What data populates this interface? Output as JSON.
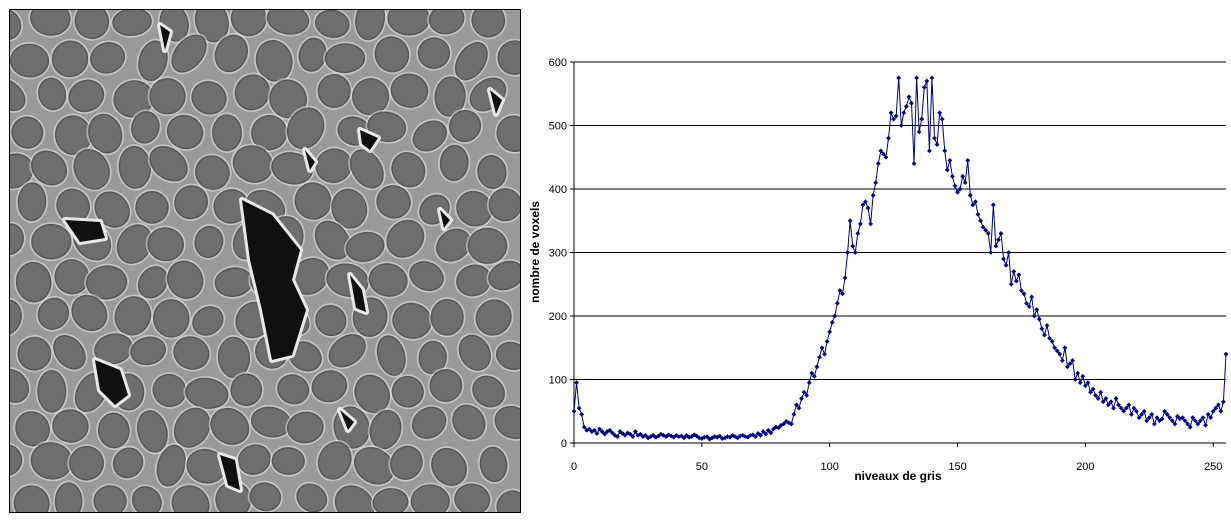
{
  "image": {
    "description_name": "micro-ct-slice",
    "colors": {
      "matrix": "#9a9a9a",
      "grain": "#6e6e6e",
      "pore": "#101010",
      "halo": "#e8e8e8"
    }
  },
  "chart_data": {
    "type": "line",
    "xlabel": "niveaux de gris",
    "ylabel": "nombre de voxels",
    "xlim": [
      0,
      255
    ],
    "ylim": [
      0,
      600
    ],
    "xticks": [
      0,
      50,
      100,
      150,
      200,
      250
    ],
    "yticks": [
      0,
      100,
      200,
      300,
      400,
      500,
      600
    ],
    "grid": "horizontal",
    "series": [
      {
        "color": "#000080",
        "marker": "diamond",
        "x": [
          0,
          1,
          2,
          3,
          4,
          5,
          6,
          7,
          8,
          9,
          10,
          11,
          12,
          13,
          14,
          15,
          16,
          17,
          18,
          19,
          20,
          21,
          22,
          23,
          24,
          25,
          26,
          27,
          28,
          29,
          30,
          31,
          32,
          33,
          34,
          35,
          36,
          37,
          38,
          39,
          40,
          41,
          42,
          43,
          44,
          45,
          46,
          47,
          48,
          49,
          50,
          51,
          52,
          53,
          54,
          55,
          56,
          57,
          58,
          59,
          60,
          61,
          62,
          63,
          64,
          65,
          66,
          67,
          68,
          69,
          70,
          71,
          72,
          73,
          74,
          75,
          76,
          77,
          78,
          79,
          80,
          81,
          82,
          83,
          84,
          85,
          86,
          87,
          88,
          89,
          90,
          91,
          92,
          93,
          94,
          95,
          96,
          97,
          98,
          99,
          100,
          101,
          102,
          103,
          104,
          105,
          106,
          107,
          108,
          109,
          110,
          111,
          112,
          113,
          114,
          115,
          116,
          117,
          118,
          119,
          120,
          121,
          122,
          123,
          124,
          125,
          126,
          127,
          128,
          129,
          130,
          131,
          132,
          133,
          134,
          135,
          136,
          137,
          138,
          139,
          140,
          141,
          142,
          143,
          144,
          145,
          146,
          147,
          148,
          149,
          150,
          151,
          152,
          153,
          154,
          155,
          156,
          157,
          158,
          159,
          160,
          161,
          162,
          163,
          164,
          165,
          166,
          167,
          168,
          169,
          170,
          171,
          172,
          173,
          174,
          175,
          176,
          177,
          178,
          179,
          180,
          181,
          182,
          183,
          184,
          185,
          186,
          187,
          188,
          189,
          190,
          191,
          192,
          193,
          194,
          195,
          196,
          197,
          198,
          199,
          200,
          201,
          202,
          203,
          204,
          205,
          206,
          207,
          208,
          209,
          210,
          211,
          212,
          213,
          214,
          215,
          216,
          217,
          218,
          219,
          220,
          221,
          222,
          223,
          224,
          225,
          226,
          227,
          228,
          229,
          230,
          231,
          232,
          233,
          234,
          235,
          236,
          237,
          238,
          239,
          240,
          241,
          242,
          243,
          244,
          245,
          246,
          247,
          248,
          249,
          250,
          251,
          252,
          253,
          254,
          255
        ],
        "y": [
          50,
          95,
          55,
          45,
          25,
          20,
          22,
          18,
          20,
          15,
          22,
          18,
          14,
          18,
          20,
          16,
          12,
          10,
          18,
          15,
          12,
          16,
          14,
          10,
          18,
          12,
          14,
          10,
          12,
          8,
          10,
          12,
          9,
          11,
          14,
          12,
          10,
          13,
          11,
          9,
          12,
          10,
          11,
          8,
          12,
          9,
          10,
          13,
          11,
          8,
          7,
          9,
          10,
          6,
          8,
          10,
          9,
          11,
          7,
          8,
          10,
          9,
          12,
          10,
          8,
          11,
          12,
          10,
          9,
          12,
          13,
          10,
          15,
          12,
          18,
          14,
          20,
          16,
          22,
          25,
          24,
          28,
          30,
          34,
          32,
          30,
          45,
          60,
          55,
          70,
          80,
          75,
          95,
          110,
          105,
          120,
          135,
          150,
          140,
          160,
          175,
          190,
          200,
          220,
          240,
          235,
          260,
          300,
          350,
          310,
          300,
          330,
          345,
          375,
          380,
          370,
          345,
          390,
          410,
          440,
          460,
          455,
          450,
          480,
          520,
          510,
          515,
          575,
          500,
          520,
          530,
          545,
          535,
          440,
          575,
          490,
          510,
          560,
          570,
          460,
          575,
          480,
          470,
          520,
          510,
          460,
          430,
          445,
          420,
          405,
          395,
          400,
          420,
          410,
          445,
          390,
          375,
          380,
          360,
          350,
          340,
          335,
          330,
          300,
          375,
          310,
          320,
          330,
          290,
          280,
          300,
          250,
          270,
          255,
          265,
          240,
          235,
          220,
          215,
          230,
          200,
          210,
          195,
          180,
          170,
          185,
          165,
          160,
          150,
          145,
          140,
          130,
          150,
          120,
          125,
          130,
          100,
          110,
          95,
          105,
          90,
          95,
          80,
          85,
          75,
          70,
          80,
          65,
          70,
          60,
          65,
          55,
          70,
          60,
          55,
          50,
          55,
          60,
          45,
          55,
          50,
          40,
          45,
          50,
          35,
          40,
          45,
          30,
          40,
          35,
          38,
          50,
          45,
          40,
          35,
          30,
          42,
          38,
          40,
          35,
          30,
          25,
          40,
          35,
          30,
          35,
          40,
          28,
          45,
          40,
          50,
          55,
          60,
          50,
          65,
          140
        ]
      }
    ]
  }
}
